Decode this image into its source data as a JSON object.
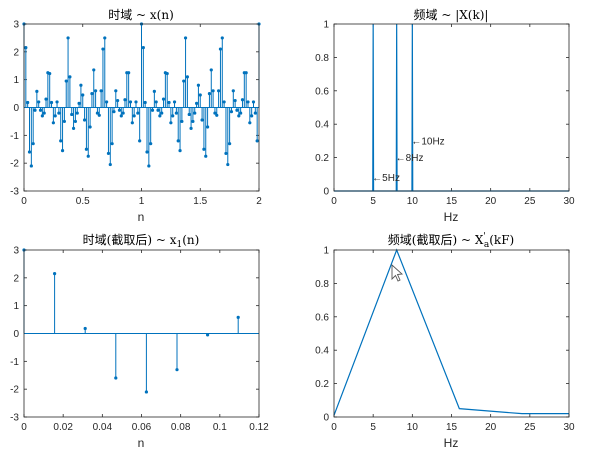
{
  "chart_data": [
    {
      "id": "p1",
      "type": "stem",
      "title": "时域 ~ x(n)",
      "xlabel": "n",
      "xlim": [
        0,
        2
      ],
      "ylim": [
        -3,
        3
      ],
      "xticks": [
        0,
        0.5,
        1,
        1.5,
        2
      ],
      "xtick_labels": [
        "0",
        "0.5",
        "1",
        "1.5",
        "2"
      ],
      "yticks": [
        -3,
        -2,
        -1,
        0,
        1,
        2,
        3
      ],
      "ytick_labels": [
        "-3",
        "-2",
        "-1",
        "0",
        "1",
        "2",
        "3"
      ],
      "color": "#0072BD",
      "step": 0.015625,
      "values": [
        3.0,
        2.15,
        0.18,
        -1.6,
        -2.1,
        -1.3,
        -0.1,
        0.58,
        0.2,
        -0.1,
        -0.3,
        -0.2,
        0.3,
        1.25,
        1.22,
        0.18,
        -0.55,
        -0.3,
        0.2,
        -0.2,
        -1.2,
        -1.55,
        -0.5,
        0.95,
        2.5,
        1.1,
        -0.25,
        -0.75,
        -0.5,
        -0.2,
        0.15,
        0.8,
        0.45,
        -0.45,
        -1.5,
        -1.75,
        -0.7,
        0.5,
        1.35,
        0.6,
        -0.2,
        -0.28,
        0.6,
        2.1,
        2.5,
        0.2,
        -1.65,
        -2.05,
        -1.3,
        -0.15,
        0.6,
        0.25,
        -0.1,
        -0.3,
        -0.2,
        0.28,
        1.25,
        1.25,
        0.2,
        -0.55,
        -0.3,
        0.2,
        -0.2,
        -1.2,
        3.0,
        2.15,
        0.18,
        -1.6,
        -2.1,
        -1.3,
        -0.1,
        0.58,
        0.2,
        -0.1,
        -0.3,
        -0.2,
        0.3,
        1.25,
        1.22,
        0.18,
        -0.55,
        -0.3,
        0.2,
        -0.2,
        -1.2,
        -1.55,
        -0.5,
        0.95,
        2.5,
        1.1,
        -0.25,
        -0.75,
        -0.5,
        -0.2,
        0.15,
        0.8,
        0.45,
        -0.45,
        -1.5,
        -1.75,
        -0.7,
        0.5,
        1.35,
        0.6,
        -0.2,
        -0.28,
        0.6,
        2.1,
        2.5,
        0.2,
        -1.65,
        -2.05,
        -1.3,
        -0.15,
        0.6,
        0.25,
        -0.1,
        -0.3,
        -0.2,
        0.28,
        1.25,
        1.25,
        0.2,
        -0.55,
        -0.3,
        0.2,
        -0.2,
        -1.2,
        3.0
      ]
    },
    {
      "id": "p2",
      "type": "line",
      "title": "频域 ~ |X(k)|",
      "xlabel": "Hz",
      "xlim": [
        0,
        30
      ],
      "ylim": [
        0,
        1
      ],
      "xticks": [
        0,
        5,
        10,
        15,
        20,
        25,
        30
      ],
      "xtick_labels": [
        "0",
        "5",
        "10",
        "15",
        "20",
        "25",
        "30"
      ],
      "yticks": [
        0,
        0.2,
        0.4,
        0.6,
        0.8,
        1
      ],
      "ytick_labels": [
        "0",
        "0.2",
        "0.4",
        "0.6",
        "0.8",
        "1"
      ],
      "color": "#0072BD",
      "x": [
        0,
        4.95,
        5,
        5.05,
        7.95,
        8,
        8.05,
        9.95,
        10,
        10.05,
        30
      ],
      "y": [
        0,
        0,
        1,
        0,
        0,
        1,
        0,
        0,
        1,
        0,
        0
      ],
      "annotations": [
        {
          "text": "←5Hz",
          "x": 5,
          "y": 0.08
        },
        {
          "text": "←8Hz",
          "x": 8,
          "y": 0.2
        },
        {
          "text": "←10Hz",
          "x": 10,
          "y": 0.3
        }
      ]
    },
    {
      "id": "p3",
      "type": "stem",
      "title": "时域(截取后) ~ x",
      "title_sub": "1",
      "title_tail": "(n)",
      "xlabel": "n",
      "xlim": [
        0,
        0.12
      ],
      "ylim": [
        -3,
        3
      ],
      "xticks": [
        0,
        0.02,
        0.04,
        0.06,
        0.08,
        0.1,
        0.12
      ],
      "xtick_labels": [
        "0",
        "0.02",
        "0.04",
        "0.06",
        "0.08",
        "0.1",
        "0.12"
      ],
      "yticks": [
        -3,
        -2,
        -1,
        0,
        1,
        2,
        3
      ],
      "ytick_labels": [
        "-3",
        "-2",
        "-1",
        "0",
        "1",
        "2",
        "3"
      ],
      "color": "#0072BD",
      "x": [
        0,
        0.015625,
        0.03125,
        0.046875,
        0.0625,
        0.078125,
        0.09375,
        0.109375
      ],
      "values": [
        3.0,
        2.15,
        0.18,
        -1.6,
        -2.1,
        -1.3,
        -0.05,
        0.58
      ]
    },
    {
      "id": "p4",
      "type": "line",
      "title": "频域(截取后) ~ X",
      "title_sup": "'",
      "title_sub": "a",
      "title_tail": "(kF)",
      "xlabel": "Hz",
      "xlim": [
        0,
        30
      ],
      "ylim": [
        0,
        1
      ],
      "xticks": [
        0,
        5,
        10,
        15,
        20,
        25,
        30
      ],
      "xtick_labels": [
        "0",
        "5",
        "10",
        "15",
        "20",
        "25",
        "30"
      ],
      "yticks": [
        0,
        0.2,
        0.4,
        0.6,
        0.8,
        1
      ],
      "ytick_labels": [
        "0",
        "0.2",
        "0.4",
        "0.6",
        "0.8",
        "1"
      ],
      "color": "#0072BD",
      "x": [
        0,
        8,
        16,
        24,
        30
      ],
      "y": [
        0.01,
        1.0,
        0.05,
        0.02,
        0.02
      ]
    }
  ]
}
